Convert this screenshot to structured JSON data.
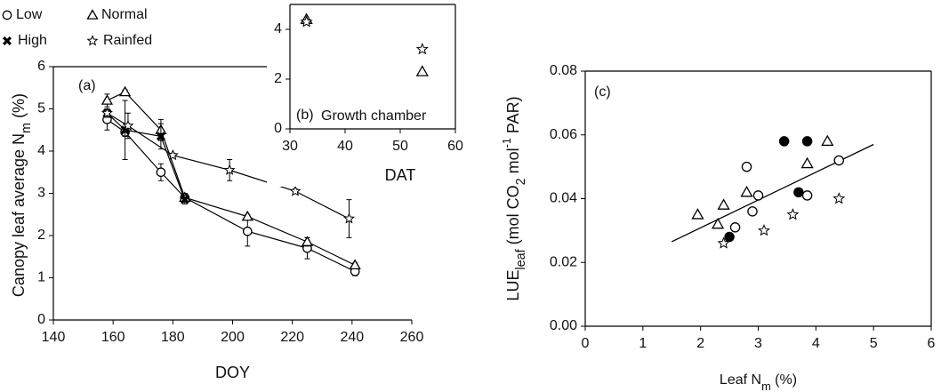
{
  "chart_data": [
    {
      "type": "line",
      "panel_label": "(a)",
      "xlabel": "DOY",
      "ylabel": [
        "Canopy leaf average N",
        "m",
        " (%)"
      ],
      "ylabel_style": [
        "normal",
        "sub",
        "normal"
      ],
      "xlim": [
        140,
        260
      ],
      "xticks": [
        140,
        160,
        180,
        200,
        220,
        240,
        260
      ],
      "ylim": [
        0,
        6
      ],
      "yticks": [
        0,
        1,
        2,
        3,
        4,
        5,
        6
      ],
      "series": [
        {
          "name": "Low",
          "marker": "circle",
          "color": "#000000",
          "x": [
            158,
            164,
            176,
            184,
            205,
            225,
            241
          ],
          "values": [
            4.75,
            4.45,
            3.5,
            2.9,
            2.1,
            1.7,
            1.15
          ],
          "errors": [
            0.25,
            0.1,
            0.2,
            0.1,
            0.35,
            0.25,
            0.1
          ]
        },
        {
          "name": "Normal",
          "marker": "triangle",
          "color": "#000000",
          "x": [
            158,
            164,
            176,
            184,
            205,
            225,
            241
          ],
          "values": [
            5.2,
            5.4,
            4.5,
            2.9,
            2.45,
            1.85,
            1.3
          ],
          "errors": [
            0.15,
            0.05,
            0.25,
            0.1,
            0.05,
            0.1,
            0.05
          ]
        },
        {
          "name": "High",
          "marker": "cross",
          "color": "#000000",
          "x": [
            158,
            164,
            176,
            184
          ],
          "values": [
            4.9,
            4.5,
            4.35,
            2.85
          ],
          "errors": [
            0.1,
            0.7,
            0.3,
            0.1
          ]
        },
        {
          "name": "Rainfed",
          "marker": "star",
          "color": "#000000",
          "x": [
            158,
            165,
            180,
            199,
            221,
            239
          ],
          "values": [
            4.9,
            4.6,
            3.9,
            3.55,
            3.05,
            2.4
          ],
          "errors": [
            0.1,
            0.3,
            0.05,
            0.25,
            0.05,
            0.45
          ]
        }
      ]
    },
    {
      "type": "scatter",
      "panel_label": "(b)",
      "annotation": "Growth chamber",
      "xlabel": "DAT",
      "xlim": [
        30,
        60
      ],
      "xticks": [
        30,
        40,
        50,
        60
      ],
      "ylim": [
        0,
        5
      ],
      "yticks": [
        0,
        2,
        4
      ],
      "series": [
        {
          "name": "Normal",
          "marker": "triangle",
          "color": "#000000",
          "x": [
            33,
            54
          ],
          "values": [
            4.4,
            2.3
          ]
        },
        {
          "name": "Rainfed",
          "marker": "star",
          "color": "#000000",
          "x": [
            33,
            54
          ],
          "values": [
            4.3,
            3.2
          ]
        }
      ]
    },
    {
      "type": "scatter",
      "panel_label": "(c)",
      "xlabel": [
        "Leaf N",
        "m",
        " (%)"
      ],
      "xlabel_style": [
        "normal",
        "sub",
        "normal"
      ],
      "ylabel": [
        "LUE",
        "leaf",
        " (mol CO",
        "2",
        " mol",
        "-1",
        " PAR)"
      ],
      "ylabel_style": [
        "normal",
        "sub",
        "normal",
        "sub",
        "normal",
        "sup",
        "normal"
      ],
      "xlim": [
        0,
        6
      ],
      "xticks": [
        0,
        1,
        2,
        3,
        4,
        5,
        6
      ],
      "ylim": [
        0,
        0.08
      ],
      "yticks": [
        {
          "value": 0,
          "label": "0.00"
        },
        0.02,
        0.04,
        0.06,
        0.08
      ],
      "series": [
        {
          "name": "Low",
          "marker": "circle",
          "color": "#000000",
          "x": [
            2.8,
            3.0,
            2.9,
            2.6,
            3.85,
            4.4
          ],
          "values": [
            0.05,
            0.041,
            0.036,
            0.031,
            0.041,
            0.052
          ]
        },
        {
          "name": "Normal",
          "marker": "triangle",
          "color": "#000000",
          "x": [
            1.95,
            2.4,
            2.3,
            2.8,
            3.85,
            4.2
          ],
          "values": [
            0.035,
            0.038,
            0.032,
            0.042,
            0.051,
            0.058
          ]
        },
        {
          "name": "High",
          "marker": "dot",
          "color": "#000000",
          "x": [
            3.45,
            3.85,
            3.7,
            2.5
          ],
          "values": [
            0.058,
            0.058,
            0.042,
            0.028
          ]
        },
        {
          "name": "Rainfed",
          "marker": "star",
          "color": "#000000",
          "x": [
            2.4,
            3.1,
            3.6,
            4.4
          ],
          "values": [
            0.026,
            0.03,
            0.035,
            0.04
          ]
        }
      ],
      "fit": {
        "x": [
          1.5,
          5
        ],
        "y": [
          0.0265,
          0.057
        ]
      }
    }
  ]
}
